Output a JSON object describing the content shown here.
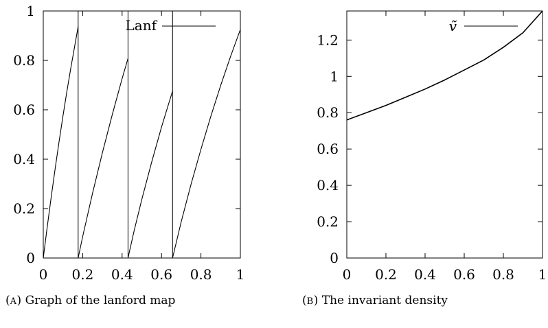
{
  "chart_data": [
    {
      "type": "line",
      "legend": "Lanf",
      "legend_position": "top-right",
      "caption_tag": "A",
      "caption_text": "Graph of the lanford map",
      "xlim": [
        0,
        1
      ],
      "ylim": [
        0,
        1
      ],
      "xticks": [
        0,
        0.2,
        0.4,
        0.6,
        0.8,
        1
      ],
      "xtick_labels": [
        "0",
        "0.2",
        "0.4",
        "0.6",
        "0.8",
        "1"
      ],
      "yticks": [
        0,
        0.2,
        0.4,
        0.6,
        0.8,
        1
      ],
      "ytick_labels": [
        "0",
        "0.2",
        "0.4",
        "0.6",
        "0.8",
        "1"
      ],
      "grid": false,
      "breakpoints": [
        0.177,
        0.43,
        0.656
      ],
      "series": [
        {
          "name": "Lanf",
          "x": [
            0,
            0.02,
            0.04,
            0.06,
            0.08,
            0.1,
            0.12,
            0.14,
            0.16,
            0.177,
            0.177,
            0.2,
            0.25,
            0.3,
            0.35,
            0.4,
            0.43,
            0.43,
            0.46,
            0.5,
            0.55,
            0.6,
            0.656,
            0.656,
            0.7,
            0.75,
            0.8,
            0.85,
            0.9,
            0.95,
            1
          ],
          "y": [
            0,
            0.125,
            0.245,
            0.36,
            0.47,
            0.575,
            0.675,
            0.77,
            0.86,
            0.937,
            0,
            0.087,
            0.262,
            0.426,
            0.58,
            0.726,
            0.808,
            0,
            0.107,
            0.237,
            0.388,
            0.53,
            0.676,
            0,
            0.147,
            0.299,
            0.44,
            0.573,
            0.698,
            0.815,
            0.925
          ]
        }
      ]
    },
    {
      "type": "line",
      "legend": "ṽ",
      "legend_position": "top-right",
      "caption_tag": "B",
      "caption_text": "The invariant density",
      "xlim": [
        0,
        1
      ],
      "ylim": [
        0,
        1.36
      ],
      "xticks": [
        0,
        0.2,
        0.4,
        0.6,
        0.8,
        1
      ],
      "xtick_labels": [
        "0",
        "0.2",
        "0.4",
        "0.6",
        "0.8",
        "1"
      ],
      "yticks": [
        0,
        0.2,
        0.4,
        0.6,
        0.8,
        1,
        1.2
      ],
      "ytick_labels": [
        "0",
        "0.2",
        "0.4",
        "0.6",
        "0.8",
        "1",
        "1.2"
      ],
      "grid": false,
      "series": [
        {
          "name": "ṽ",
          "x": [
            0,
            0.1,
            0.2,
            0.3,
            0.4,
            0.5,
            0.6,
            0.7,
            0.8,
            0.9,
            1
          ],
          "y": [
            0.76,
            0.8,
            0.84,
            0.885,
            0.93,
            0.98,
            1.035,
            1.09,
            1.16,
            1.24,
            1.36
          ]
        }
      ]
    }
  ]
}
